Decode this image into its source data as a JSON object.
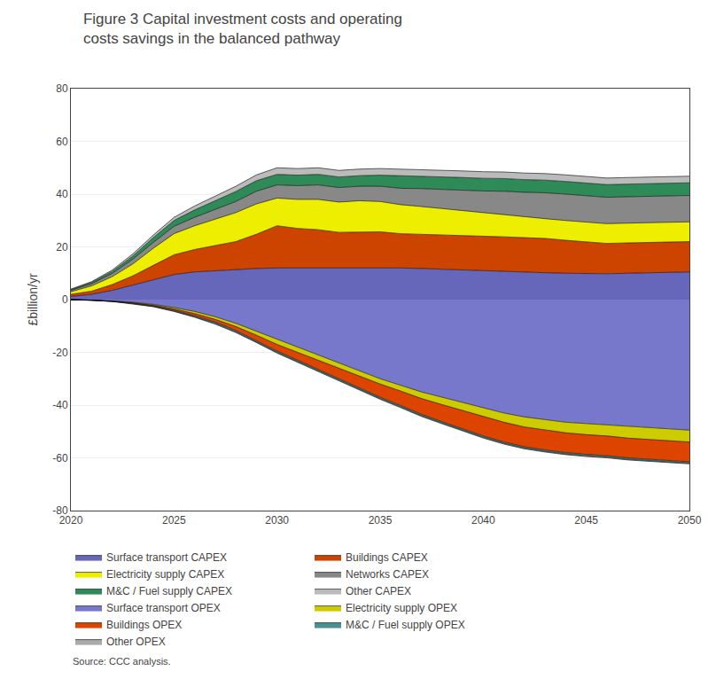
{
  "chart_data": {
    "type": "area",
    "stacked": true,
    "title": "Figure 3 Capital investment costs and operating costs savings in the balanced pathway",
    "y_label": "£billion/yr",
    "annotations": [
      "Source: CCC analysis."
    ],
    "x": [
      2020,
      2021,
      2022,
      2023,
      2024,
      2025,
      2026,
      2027,
      2028,
      2029,
      2030,
      2031,
      2032,
      2033,
      2034,
      2035,
      2036,
      2037,
      2038,
      2039,
      2040,
      2041,
      2042,
      2043,
      2044,
      2045,
      2046,
      2047,
      2048,
      2049,
      2050
    ],
    "xlim": [
      2020,
      2050
    ],
    "xticks": [
      2020,
      2025,
      2030,
      2035,
      2040,
      2045,
      2050
    ],
    "ylim": [
      -80,
      80
    ],
    "yticks": [
      -80,
      -60,
      -40,
      -20,
      0,
      20,
      40,
      60,
      80
    ],
    "grid": true,
    "legend": "bottom",
    "series": [
      {
        "name": "Surface transport CAPEX",
        "color": "#6666BB",
        "values": [
          1.2,
          2.0,
          3.5,
          5.5,
          7.5,
          9.5,
          10.5,
          11.0,
          11.5,
          11.8,
          12.0,
          12.0,
          12.0,
          12.0,
          12.0,
          12.2,
          12.0,
          11.8,
          11.5,
          11.2,
          11.0,
          10.8,
          10.5,
          10.2,
          10.0,
          9.8,
          9.8,
          10.0,
          10.2,
          10.4,
          10.5
        ]
      },
      {
        "name": "Buildings CAPEX",
        "color": "#CC4400",
        "values": [
          0.8,
          1.2,
          2.2,
          3.5,
          5.5,
          7.5,
          8.5,
          9.5,
          10.5,
          13.0,
          16.0,
          15.0,
          14.5,
          13.5,
          13.5,
          13.5,
          13.0,
          13.0,
          13.0,
          13.0,
          13.0,
          13.0,
          13.0,
          13.0,
          12.5,
          12.0,
          11.5,
          11.5,
          11.5,
          11.5,
          11.5
        ]
      },
      {
        "name": "Electricity supply CAPEX",
        "color": "#EEEE00",
        "values": [
          1.0,
          2.0,
          3.0,
          4.5,
          6.5,
          8.0,
          9.0,
          10.0,
          11.0,
          11.5,
          10.5,
          11.0,
          11.5,
          11.5,
          12.0,
          11.5,
          11.0,
          10.5,
          10.0,
          9.5,
          9.0,
          8.5,
          8.0,
          7.5,
          7.5,
          7.5,
          7.5,
          7.5,
          7.5,
          7.5,
          7.5
        ]
      },
      {
        "name": "Networks CAPEX",
        "color": "#888888",
        "values": [
          0.5,
          0.8,
          1.2,
          1.8,
          2.2,
          2.8,
          3.2,
          3.8,
          4.2,
          4.8,
          5.0,
          5.2,
          5.5,
          5.5,
          5.5,
          5.8,
          6.2,
          6.8,
          7.2,
          7.8,
          8.2,
          8.8,
          9.2,
          9.8,
          10.0,
          10.0,
          10.0,
          10.0,
          10.0,
          10.0,
          10.0
        ]
      },
      {
        "name": "M&C / Fuel supply CAPEX",
        "color": "#2E8B57",
        "values": [
          0.3,
          0.5,
          0.8,
          1.2,
          1.8,
          2.2,
          2.8,
          3.2,
          3.8,
          4.0,
          4.0,
          4.0,
          4.0,
          4.0,
          4.0,
          4.2,
          4.8,
          4.8,
          4.8,
          4.8,
          4.8,
          4.8,
          4.8,
          4.8,
          4.8,
          4.8,
          4.8,
          4.8,
          4.8,
          4.8,
          4.8
        ]
      },
      {
        "name": "Other CAPEX",
        "color": "#BBBBBB",
        "values": [
          0.2,
          0.3,
          0.5,
          0.8,
          1.0,
          1.2,
          1.5,
          1.8,
          2.0,
          2.2,
          2.5,
          2.5,
          2.5,
          2.5,
          2.5,
          2.5,
          2.5,
          2.5,
          2.5,
          2.5,
          2.5,
          2.5,
          2.5,
          2.5,
          2.5,
          2.5,
          2.5,
          2.5,
          2.5,
          2.5,
          2.5
        ]
      },
      {
        "name": "Surface transport OPEX",
        "color": "#7777CC",
        "values": [
          0.0,
          -0.2,
          -0.5,
          -1.0,
          -1.8,
          -3.0,
          -4.5,
          -6.5,
          -9.0,
          -12.0,
          -15.0,
          -18.0,
          -21.0,
          -24.0,
          -27.0,
          -30.0,
          -32.5,
          -35.0,
          -37.0,
          -39.0,
          -41.0,
          -43.0,
          -44.5,
          -45.5,
          -46.5,
          -47.0,
          -47.5,
          -48.0,
          -48.5,
          -49.0,
          -49.5
        ]
      },
      {
        "name": "Electricity supply OPEX",
        "color": "#CCCC00",
        "values": [
          0.0,
          0.0,
          -0.1,
          -0.2,
          -0.3,
          -0.5,
          -0.8,
          -1.0,
          -1.2,
          -1.5,
          -2.0,
          -2.0,
          -2.0,
          -2.0,
          -2.0,
          -2.0,
          -2.2,
          -2.5,
          -2.8,
          -3.0,
          -3.2,
          -3.5,
          -3.8,
          -4.0,
          -4.0,
          -4.2,
          -4.2,
          -4.5,
          -4.5,
          -4.5,
          -4.5
        ]
      },
      {
        "name": "Buildings OPEX",
        "color": "#DD4400",
        "values": [
          0.0,
          0.0,
          -0.1,
          -0.2,
          -0.3,
          -0.5,
          -0.8,
          -1.0,
          -1.5,
          -2.0,
          -2.5,
          -3.0,
          -3.5,
          -4.0,
          -4.5,
          -5.0,
          -5.5,
          -6.0,
          -6.5,
          -7.0,
          -7.5,
          -7.5,
          -7.5,
          -7.5,
          -7.5,
          -7.5,
          -7.5,
          -7.5,
          -7.5,
          -7.5,
          -7.5
        ]
      },
      {
        "name": "M&C / Fuel supply OPEX",
        "color": "#4A9090",
        "values": [
          0.0,
          0.0,
          0.0,
          -0.1,
          -0.2,
          -0.3,
          -0.4,
          -0.5,
          -0.5,
          -0.5,
          -0.5,
          -0.5,
          -0.5,
          -0.5,
          -0.5,
          -0.5,
          -0.5,
          -0.5,
          -0.5,
          -0.5,
          -0.5,
          -0.5,
          -0.5,
          -0.5,
          -0.5,
          -0.5,
          -0.5,
          -0.5,
          -0.5,
          -0.5,
          -0.5
        ]
      },
      {
        "name": "Other OPEX",
        "color": "#AAAAAA",
        "values": [
          0.0,
          0.0,
          0.0,
          -0.1,
          -0.1,
          -0.2,
          -0.2,
          -0.3,
          -0.3,
          -0.3,
          -0.3,
          -0.3,
          -0.3,
          -0.3,
          -0.3,
          -0.3,
          -0.3,
          -0.3,
          -0.3,
          -0.3,
          -0.3,
          -0.3,
          -0.3,
          -0.3,
          -0.3,
          -0.3,
          -0.3,
          -0.3,
          -0.3,
          -0.3,
          -0.3
        ]
      }
    ]
  }
}
